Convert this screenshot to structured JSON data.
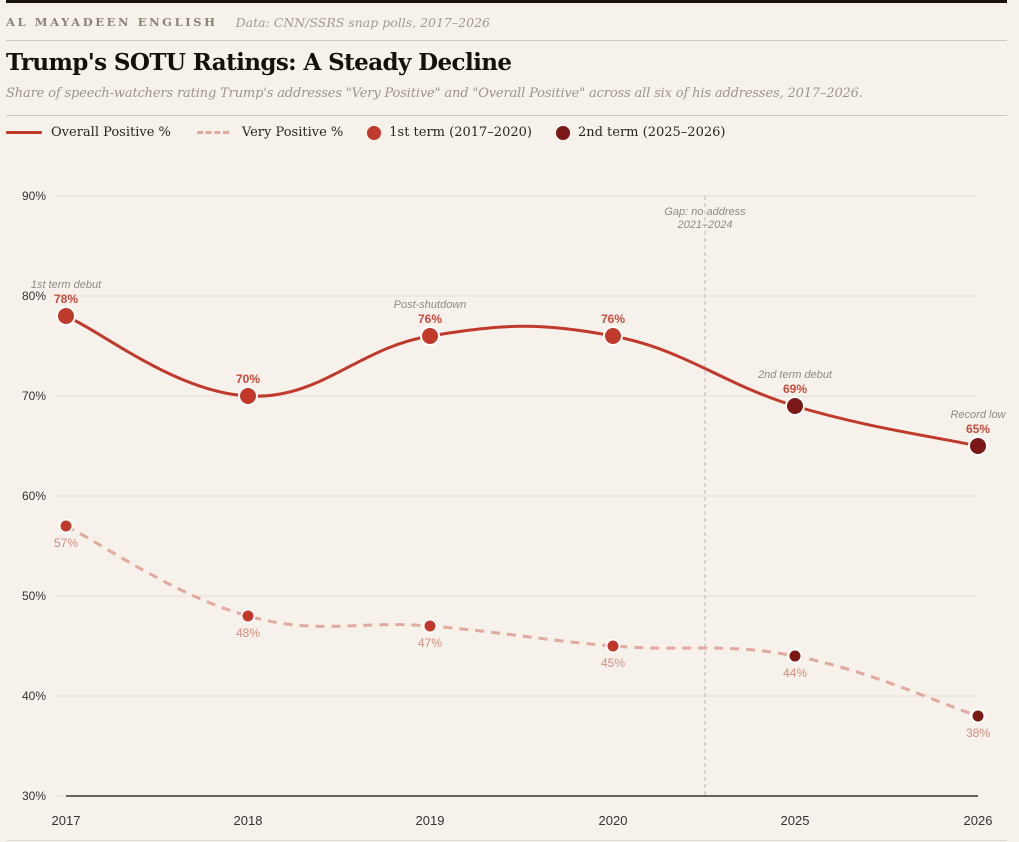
{
  "masthead": {
    "brand": "AL MAYADEEN ENGLISH",
    "source": "Data: CNN/SSRS snap polls, 2017–2026"
  },
  "header": {
    "title": "Trump's SOTU Ratings: A Steady Decline",
    "subtitle": "Share of speech-watchers rating Trump's addresses \"Very Positive\" and \"Overall Positive\" across all six of his addresses, 2017–2026."
  },
  "legend": [
    {
      "label": "Overall Positive %",
      "kind": "solid-line"
    },
    {
      "label": "Very Positive %",
      "kind": "dashed-line"
    },
    {
      "label": "1st term (2017–2020)",
      "kind": "dot"
    },
    {
      "label": "2nd term (2025–2026)",
      "kind": "dot"
    }
  ],
  "colors": {
    "overall_line": "#c0392b",
    "very_line": "#e2a99d",
    "first_term": "#c0392b",
    "second_term": "#7b1717",
    "overall_label": "#c94b3c",
    "very_label": "#d48d82"
  },
  "chart_data": {
    "type": "line",
    "title": "Trump's SOTU Ratings: A Steady Decline",
    "xlabel": "",
    "ylabel": "",
    "categories": [
      "2017",
      "2018",
      "2019",
      "2020",
      "2025",
      "2026"
    ],
    "ylim": [
      30,
      90
    ],
    "yticks": [
      90,
      80,
      70,
      60,
      50,
      40,
      30
    ],
    "ytick_labels": [
      "90%",
      "80%",
      "70%",
      "60%",
      "50%",
      "40%",
      "30%"
    ],
    "grid": true,
    "legend_position": "top-left",
    "terms": [
      "1st",
      "1st",
      "1st",
      "1st",
      "2nd",
      "2nd"
    ],
    "series": [
      {
        "name": "Overall Positive %",
        "style": "solid",
        "values": [
          78,
          70,
          76,
          76,
          69,
          65
        ],
        "labels": [
          "78%",
          "70%",
          "76%",
          "76%",
          "69%",
          "65%"
        ]
      },
      {
        "name": "Very Positive %",
        "style": "dashed",
        "values": [
          57,
          48,
          47,
          45,
          44,
          38
        ],
        "labels": [
          "57%",
          "48%",
          "47%",
          "45%",
          "44%",
          "38%"
        ]
      }
    ],
    "annotations": [
      {
        "category": "2017",
        "text": "1st term debut"
      },
      {
        "category": "2019",
        "text": "Post-shutdown"
      },
      {
        "category": "2025",
        "text": "2nd term debut"
      },
      {
        "category": "2026",
        "text": "Record low"
      }
    ],
    "gap_marker": {
      "between": [
        "2020",
        "2025"
      ],
      "lines": [
        "Gap: no address",
        "2021–2024"
      ]
    }
  }
}
